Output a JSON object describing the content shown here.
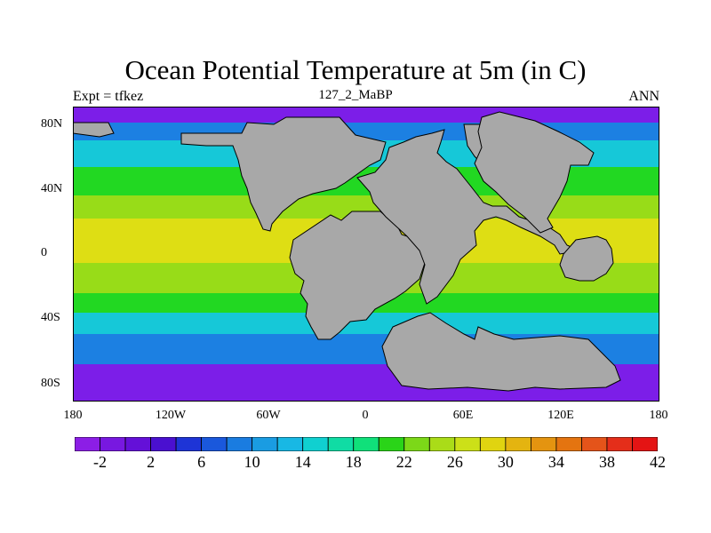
{
  "title": "Ocean Potential Temperature at 5m (in C)",
  "left_label": "Expt = tfkez",
  "center_label": "127_2_MaBP",
  "right_label": "ANN",
  "y_ticks": [
    "80N",
    "40N",
    "0",
    "40S",
    "80S"
  ],
  "x_ticks": [
    "180",
    "120W",
    "60W",
    "0",
    "60E",
    "120E",
    "180"
  ],
  "colorbar": {
    "ticks": [
      "-2",
      "2",
      "6",
      "10",
      "14",
      "18",
      "22",
      "26",
      "30",
      "34",
      "38",
      "42"
    ],
    "colors": [
      "#8c1ee6",
      "#7818e0",
      "#6410d8",
      "#4a10d0",
      "#1e34d6",
      "#1a58dc",
      "#1a7ce0",
      "#1a9ce2",
      "#18b8e4",
      "#10d0d0",
      "#10dca4",
      "#10e07a",
      "#2ad418",
      "#7cd818",
      "#aadc18",
      "#cce018",
      "#e0d410",
      "#e4b410",
      "#e49410",
      "#e47410",
      "#e4541a",
      "#e42e1a",
      "#e41414"
    ]
  },
  "map_colors": {
    "land": "#a8a8a8",
    "polar": "#7c1ee8",
    "subpolar": "#1c80e2",
    "midlat": "#16c8d8",
    "temperate": "#22d822",
    "subtropic": "#98dc18",
    "tropic": "#cce018",
    "warm": "#dede14"
  }
}
